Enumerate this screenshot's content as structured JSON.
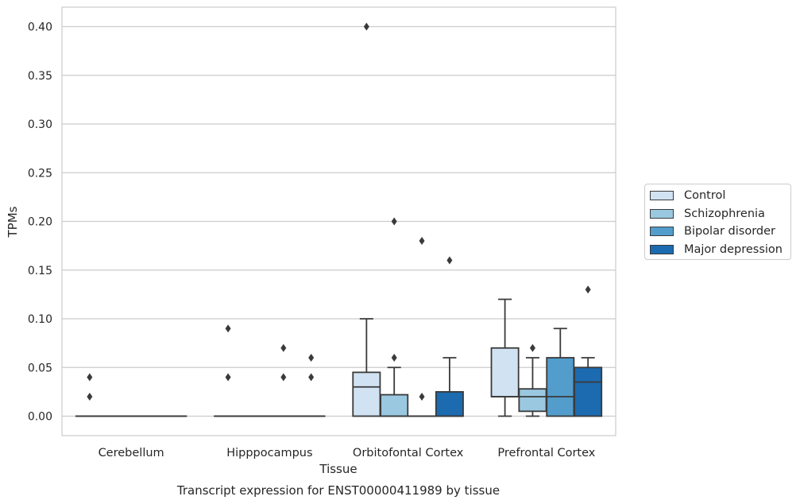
{
  "chart_data": {
    "type": "box",
    "title": "Transcript expression for ENST00000411989 by tissue",
    "xlabel": "Tissue",
    "ylabel": "TPMs",
    "ylim": [
      -0.02,
      0.42
    ],
    "yticks": [
      "0.00",
      "0.05",
      "0.10",
      "0.15",
      "0.20",
      "0.25",
      "0.30",
      "0.35",
      "0.40"
    ],
    "grid": true,
    "legend_position": "right",
    "categories": [
      "Cerebellum",
      "Hipppocampus",
      "Orbitofontal Cortex",
      "Prefrontal Cortex"
    ],
    "series": [
      {
        "name": "Control",
        "color": "#d1e2f2",
        "boxes": [
          {
            "q1": 0,
            "median": 0,
            "q3": 0,
            "whislo": 0,
            "whishi": 0,
            "fliers": [
              0.04,
              0.02
            ]
          },
          {
            "q1": 0,
            "median": 0,
            "q3": 0,
            "whislo": 0,
            "whishi": 0,
            "fliers": [
              0.09,
              0.04
            ]
          },
          {
            "q1": 0,
            "median": 0.03,
            "q3": 0.045,
            "whislo": 0,
            "whishi": 0.1,
            "fliers": [
              0.4
            ]
          },
          {
            "q1": 0.02,
            "median": 0.02,
            "q3": 0.07,
            "whislo": 0,
            "whishi": 0.12,
            "fliers": []
          }
        ]
      },
      {
        "name": "Schizophrenia",
        "color": "#9ac8e0",
        "boxes": [
          {
            "q1": 0,
            "median": 0,
            "q3": 0,
            "whislo": 0,
            "whishi": 0,
            "fliers": []
          },
          {
            "q1": 0,
            "median": 0,
            "q3": 0,
            "whislo": 0,
            "whishi": 0,
            "fliers": []
          },
          {
            "q1": 0,
            "median": 0,
            "q3": 0.022,
            "whislo": 0,
            "whishi": 0.05,
            "fliers": [
              0.06,
              0.2
            ]
          },
          {
            "q1": 0.005,
            "median": 0.02,
            "q3": 0.028,
            "whislo": 0,
            "whishi": 0.06,
            "fliers": [
              0.07
            ]
          }
        ]
      },
      {
        "name": "Bipolar disorder",
        "color": "#529dcc",
        "boxes": [
          {
            "q1": 0,
            "median": 0,
            "q3": 0,
            "whislo": 0,
            "whishi": 0,
            "fliers": []
          },
          {
            "q1": 0,
            "median": 0,
            "q3": 0,
            "whislo": 0,
            "whishi": 0,
            "fliers": [
              0.07,
              0.04
            ]
          },
          {
            "q1": 0,
            "median": 0,
            "q3": 0,
            "whislo": 0,
            "whishi": 0,
            "fliers": [
              0.02,
              0.18
            ]
          },
          {
            "q1": 0,
            "median": 0.02,
            "q3": 0.06,
            "whislo": 0,
            "whishi": 0.09,
            "fliers": []
          }
        ]
      },
      {
        "name": "Major depression",
        "color": "#1c6aaf",
        "boxes": [
          {
            "q1": 0,
            "median": 0,
            "q3": 0,
            "whislo": 0,
            "whishi": 0,
            "fliers": []
          },
          {
            "q1": 0,
            "median": 0,
            "q3": 0,
            "whislo": 0,
            "whishi": 0,
            "fliers": [
              0.06,
              0.04
            ]
          },
          {
            "q1": 0,
            "median": 0,
            "q3": 0.025,
            "whislo": 0,
            "whishi": 0.06,
            "fliers": [
              0.16
            ]
          },
          {
            "q1": 0,
            "median": 0.035,
            "q3": 0.05,
            "whislo": 0,
            "whishi": 0.06,
            "fliers": [
              0.13
            ]
          }
        ]
      }
    ]
  }
}
